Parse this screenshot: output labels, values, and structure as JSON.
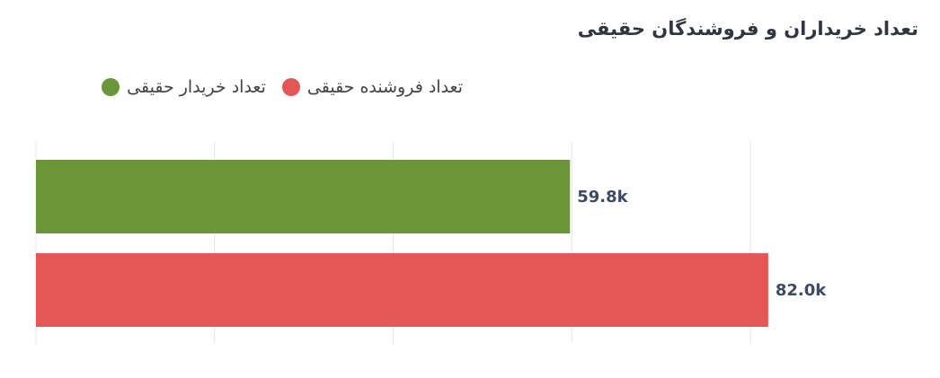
{
  "chart_data": {
    "type": "bar",
    "orientation": "horizontal",
    "title": "تعداد خریداران و فروشندگان حقیقی",
    "categories": [
      null
    ],
    "series": [
      {
        "name": "تعداد خریدار حقیقی",
        "color": "#6a9637",
        "values": [
          59800
        ],
        "value_labels": [
          "59.8k"
        ]
      },
      {
        "name": "تعداد فروشنده حقیقی",
        "color": "#e55757",
        "values": [
          82000
        ],
        "value_labels": [
          "82.0k"
        ]
      }
    ],
    "xlim": [
      0,
      80000
    ],
    "xticks": [
      0,
      20000,
      40000,
      60000,
      80000
    ],
    "grid": true
  }
}
